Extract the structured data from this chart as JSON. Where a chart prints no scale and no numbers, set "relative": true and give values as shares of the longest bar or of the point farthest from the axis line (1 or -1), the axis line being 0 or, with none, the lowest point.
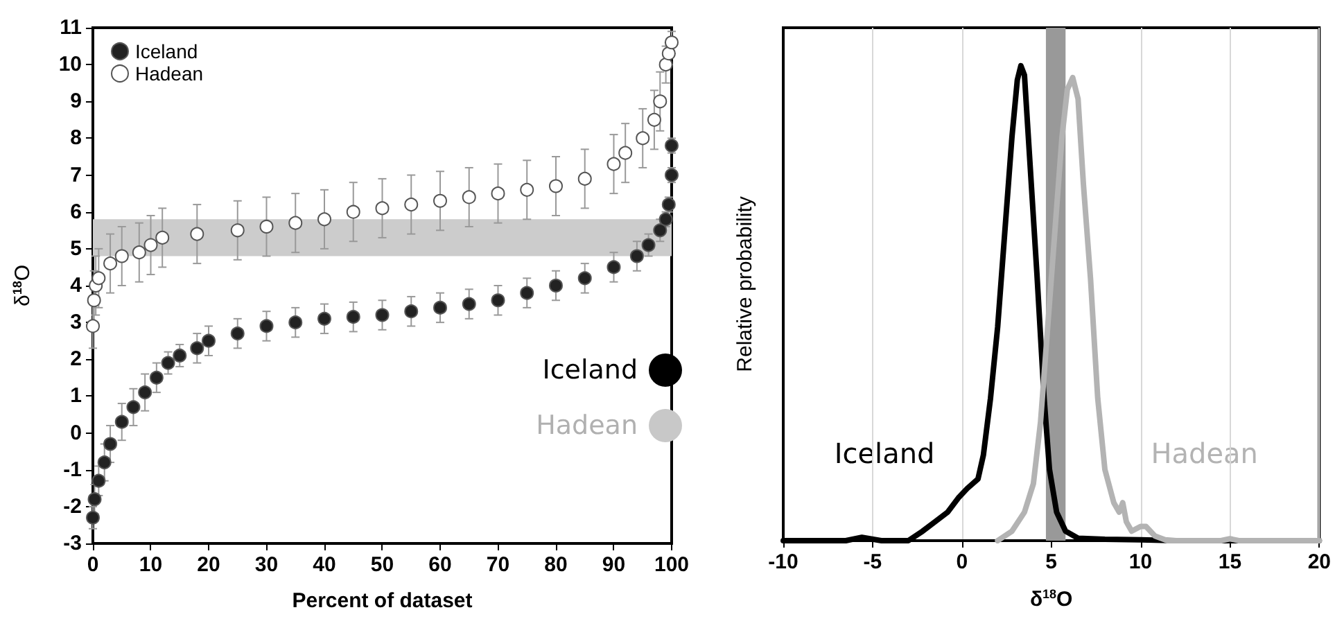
{
  "chart_data": [
    {
      "type": "scatter",
      "xlabel": "Percent of dataset",
      "ylabel": "δ$^{18}$O",
      "xlim": [
        0,
        100
      ],
      "xticks": [
        0,
        10,
        20,
        30,
        40,
        50,
        60,
        70,
        80,
        90,
        100
      ],
      "ylim": [
        -3,
        11
      ],
      "yticks": [
        -3,
        -2,
        -1,
        0,
        1,
        2,
        3,
        4,
        5,
        6,
        7,
        8,
        9,
        10,
        11
      ],
      "grid": false,
      "legend": "top left",
      "marker": "circle",
      "bands": [
        {
          "axis": "y",
          "from": 4.8,
          "to": 5.8,
          "color": "#cccccc"
        }
      ],
      "annotations": [
        "Iceland",
        "Hadean"
      ],
      "series": [
        {
          "name": "Iceland",
          "color": "#222222",
          "x": [
            0,
            0.3,
            1,
            2,
            3,
            5,
            7,
            9,
            11,
            13,
            15,
            18,
            20,
            25,
            30,
            35,
            40,
            45,
            50,
            55,
            60,
            65,
            70,
            75,
            80,
            85,
            90,
            94,
            96,
            98,
            99,
            99.5,
            100,
            100
          ],
          "values": [
            -2.3,
            -1.8,
            -1.3,
            -0.8,
            -0.3,
            0.3,
            0.7,
            1.1,
            1.5,
            1.9,
            2.1,
            2.3,
            2.5,
            2.7,
            2.9,
            3.0,
            3.1,
            3.15,
            3.2,
            3.3,
            3.4,
            3.5,
            3.6,
            3.8,
            4.0,
            4.2,
            4.5,
            4.8,
            5.1,
            5.5,
            5.8,
            6.2,
            7.0,
            7.8
          ],
          "errors": [
            0.3,
            0.4,
            0.4,
            0.5,
            0.5,
            0.5,
            0.5,
            0.5,
            0.4,
            0.3,
            0.3,
            0.4,
            0.4,
            0.4,
            0.4,
            0.4,
            0.4,
            0.4,
            0.4,
            0.4,
            0.4,
            0.4,
            0.4,
            0.4,
            0.4,
            0.4,
            0.4,
            0.4,
            0.3,
            0.3,
            0.2,
            0.2,
            0.2,
            0.2
          ]
        },
        {
          "name": "Hadean",
          "color": "#ffffff",
          "x": [
            0,
            0.2,
            0.5,
            1,
            3,
            5,
            8,
            10,
            12,
            18,
            25,
            30,
            35,
            40,
            45,
            50,
            55,
            60,
            65,
            70,
            75,
            80,
            85,
            90,
            92,
            95,
            97,
            98,
            99,
            99.5,
            100
          ],
          "values": [
            2.9,
            3.6,
            4.0,
            4.2,
            4.6,
            4.8,
            4.9,
            5.1,
            5.3,
            5.4,
            5.5,
            5.6,
            5.7,
            5.8,
            6.0,
            6.1,
            6.2,
            6.3,
            6.4,
            6.5,
            6.6,
            6.7,
            6.9,
            7.3,
            7.6,
            8.0,
            8.5,
            9.0,
            10.0,
            10.3,
            10.6
          ],
          "errors": [
            0.6,
            0.8,
            0.8,
            0.8,
            0.8,
            0.8,
            0.8,
            0.8,
            0.8,
            0.8,
            0.8,
            0.8,
            0.8,
            0.8,
            0.8,
            0.8,
            0.8,
            0.8,
            0.8,
            0.8,
            0.8,
            0.8,
            0.8,
            0.8,
            0.8,
            0.8,
            0.8,
            0.8,
            0.5,
            0.3,
            0.3
          ]
        }
      ]
    },
    {
      "type": "line",
      "relative": true,
      "xlabel": "δ$^{18}$O",
      "ylabel": "Relative probability",
      "xlim": [
        -10,
        20
      ],
      "xticks": [
        -10,
        -5,
        0,
        5,
        10,
        15,
        20
      ],
      "grid": "x",
      "legend": false,
      "marker": "none",
      "line_style": "solid",
      "bands": [
        {
          "axis": "x",
          "from": 4.7,
          "to": 5.8,
          "color": "#999999"
        }
      ],
      "series": [
        {
          "name": "Iceland",
          "color": "#000000",
          "x": [
            -10,
            -6.5,
            -5.6,
            -4.5,
            -3,
            -2.2,
            -1.5,
            -0.8,
            -0.2,
            0.3,
            0.9,
            1.2,
            1.6,
            2.0,
            2.4,
            2.8,
            3.1,
            3.3,
            3.5,
            3.8,
            4.2,
            4.6,
            4.9,
            5.3,
            5.8,
            6.5,
            8,
            10,
            12,
            20
          ],
          "values": [
            0,
            0,
            0.007,
            0,
            0,
            0.02,
            0.04,
            0.06,
            0.09,
            0.11,
            0.13,
            0.18,
            0.3,
            0.45,
            0.65,
            0.85,
            0.97,
            1.0,
            0.98,
            0.8,
            0.56,
            0.3,
            0.15,
            0.06,
            0.02,
            0.005,
            0.003,
            0.002,
            0,
            0
          ]
        },
        {
          "name": "Hadean",
          "color": "#b3b3b3",
          "x": [
            2,
            2.8,
            3.5,
            4.0,
            4.4,
            4.8,
            5.2,
            5.6,
            5.9,
            6.2,
            6.5,
            6.8,
            7.2,
            7.6,
            8.0,
            8.5,
            8.8,
            9.0,
            9.2,
            9.5,
            10.0,
            10.3,
            10.8,
            11.5,
            14.5,
            15,
            15.5,
            20
          ],
          "values": [
            0,
            0.02,
            0.06,
            0.12,
            0.25,
            0.45,
            0.65,
            0.85,
            0.95,
            0.975,
            0.93,
            0.75,
            0.55,
            0.3,
            0.15,
            0.08,
            0.06,
            0.08,
            0.04,
            0.02,
            0.03,
            0.03,
            0.01,
            0,
            0,
            0.004,
            0,
            0
          ]
        }
      ]
    }
  ]
}
